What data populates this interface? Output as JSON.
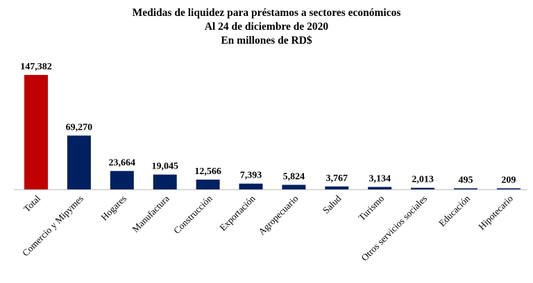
{
  "chart_data": {
    "type": "bar",
    "title": "Medidas de liquidez para préstamos a sectores económicos",
    "subtitle": "Al 24 de diciembre de 2020",
    "unit_label": "En millones de RD$",
    "categories": [
      "Total",
      "Comercio y Mipymes",
      "Hogares",
      "Manufactura",
      "Construcción",
      "Exportación",
      "Agropecuario",
      "Salud",
      "Turismo",
      "Otros servicios sociales",
      "Educación",
      "Hipotecario"
    ],
    "values": [
      147382,
      69270,
      23664,
      19045,
      12566,
      7393,
      5824,
      3767,
      3134,
      2013,
      495,
      209
    ],
    "data_labels": [
      "147,382",
      "69,270",
      "23,664",
      "19,045",
      "12,566",
      "7,393",
      "5,824",
      "3,767",
      "3,134",
      "2,013",
      "495",
      "209"
    ],
    "colors": [
      "#c00000",
      "#002060",
      "#002060",
      "#002060",
      "#002060",
      "#002060",
      "#002060",
      "#002060",
      "#002060",
      "#002060",
      "#002060",
      "#002060"
    ],
    "ylim": [
      0,
      147382
    ],
    "grid": false,
    "legend": "none"
  }
}
